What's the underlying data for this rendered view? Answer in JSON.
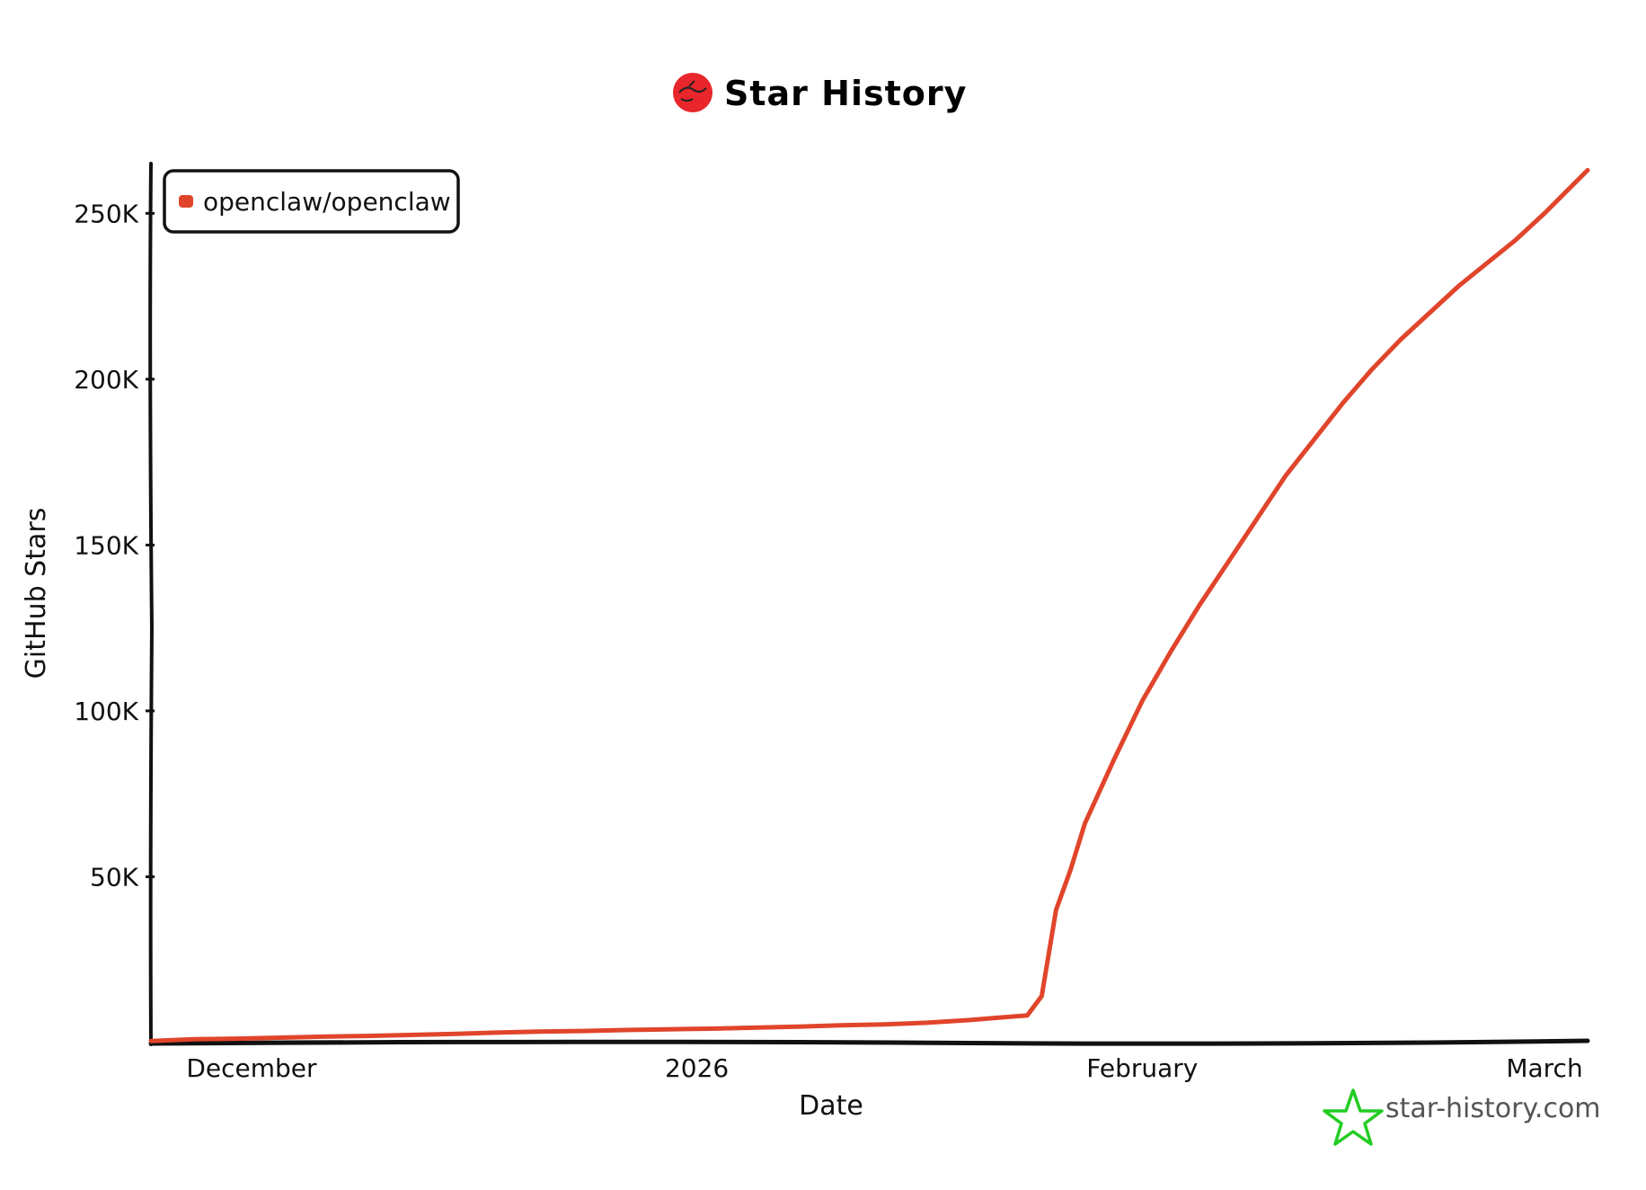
{
  "title": "Star History",
  "watermark": "star-history.com",
  "colors": {
    "series": "#e0452b",
    "axis": "#111111",
    "watermark_star": "#22cc22",
    "logo": "#e8262c"
  },
  "chart_data": {
    "type": "line",
    "xlabel": "Date",
    "ylabel": "GitHub Stars",
    "x_ticks": [
      "December",
      "2026",
      "February",
      "March"
    ],
    "x_tick_dates": [
      "2025-12-01",
      "2026-01-01",
      "2026-02-01",
      "2026-03-01"
    ],
    "xlim": [
      "2025-11-24",
      "2026-03-04"
    ],
    "y_ticks": [
      "50K",
      "100K",
      "150K",
      "200K",
      "250K"
    ],
    "y_tick_values": [
      50000,
      100000,
      150000,
      200000,
      250000
    ],
    "ylim": [
      0,
      265000
    ],
    "legend_position": "top-left",
    "grid": false,
    "series": [
      {
        "name": "openclaw/openclaw",
        "x": [
          "2025-11-24",
          "2025-11-27",
          "2025-11-30",
          "2025-12-03",
          "2025-12-06",
          "2025-12-09",
          "2025-12-12",
          "2025-12-15",
          "2025-12-18",
          "2025-12-21",
          "2025-12-24",
          "2025-12-27",
          "2025-12-30",
          "2026-01-02",
          "2026-01-05",
          "2026-01-08",
          "2026-01-11",
          "2026-01-14",
          "2026-01-17",
          "2026-01-20",
          "2026-01-22",
          "2026-01-24",
          "2026-01-25",
          "2026-01-26",
          "2026-01-27",
          "2026-01-28",
          "2026-01-30",
          "2026-02-01",
          "2026-02-03",
          "2026-02-05",
          "2026-02-07",
          "2026-02-09",
          "2026-02-11",
          "2026-02-13",
          "2026-02-15",
          "2026-02-17",
          "2026-02-19",
          "2026-02-21",
          "2026-02-23",
          "2026-02-25",
          "2026-02-27",
          "2026-03-01",
          "2026-03-04"
        ],
        "y": [
          500,
          1000,
          1200,
          1500,
          1800,
          2000,
          2300,
          2600,
          3000,
          3300,
          3500,
          3800,
          4000,
          4200,
          4500,
          4800,
          5200,
          5500,
          6000,
          6800,
          7500,
          8200,
          14000,
          40000,
          52000,
          66000,
          85000,
          103000,
          118000,
          132000,
          145000,
          158000,
          171000,
          182000,
          193000,
          203000,
          212000,
          220000,
          228000,
          235000,
          242000,
          250000,
          263000
        ]
      }
    ]
  }
}
